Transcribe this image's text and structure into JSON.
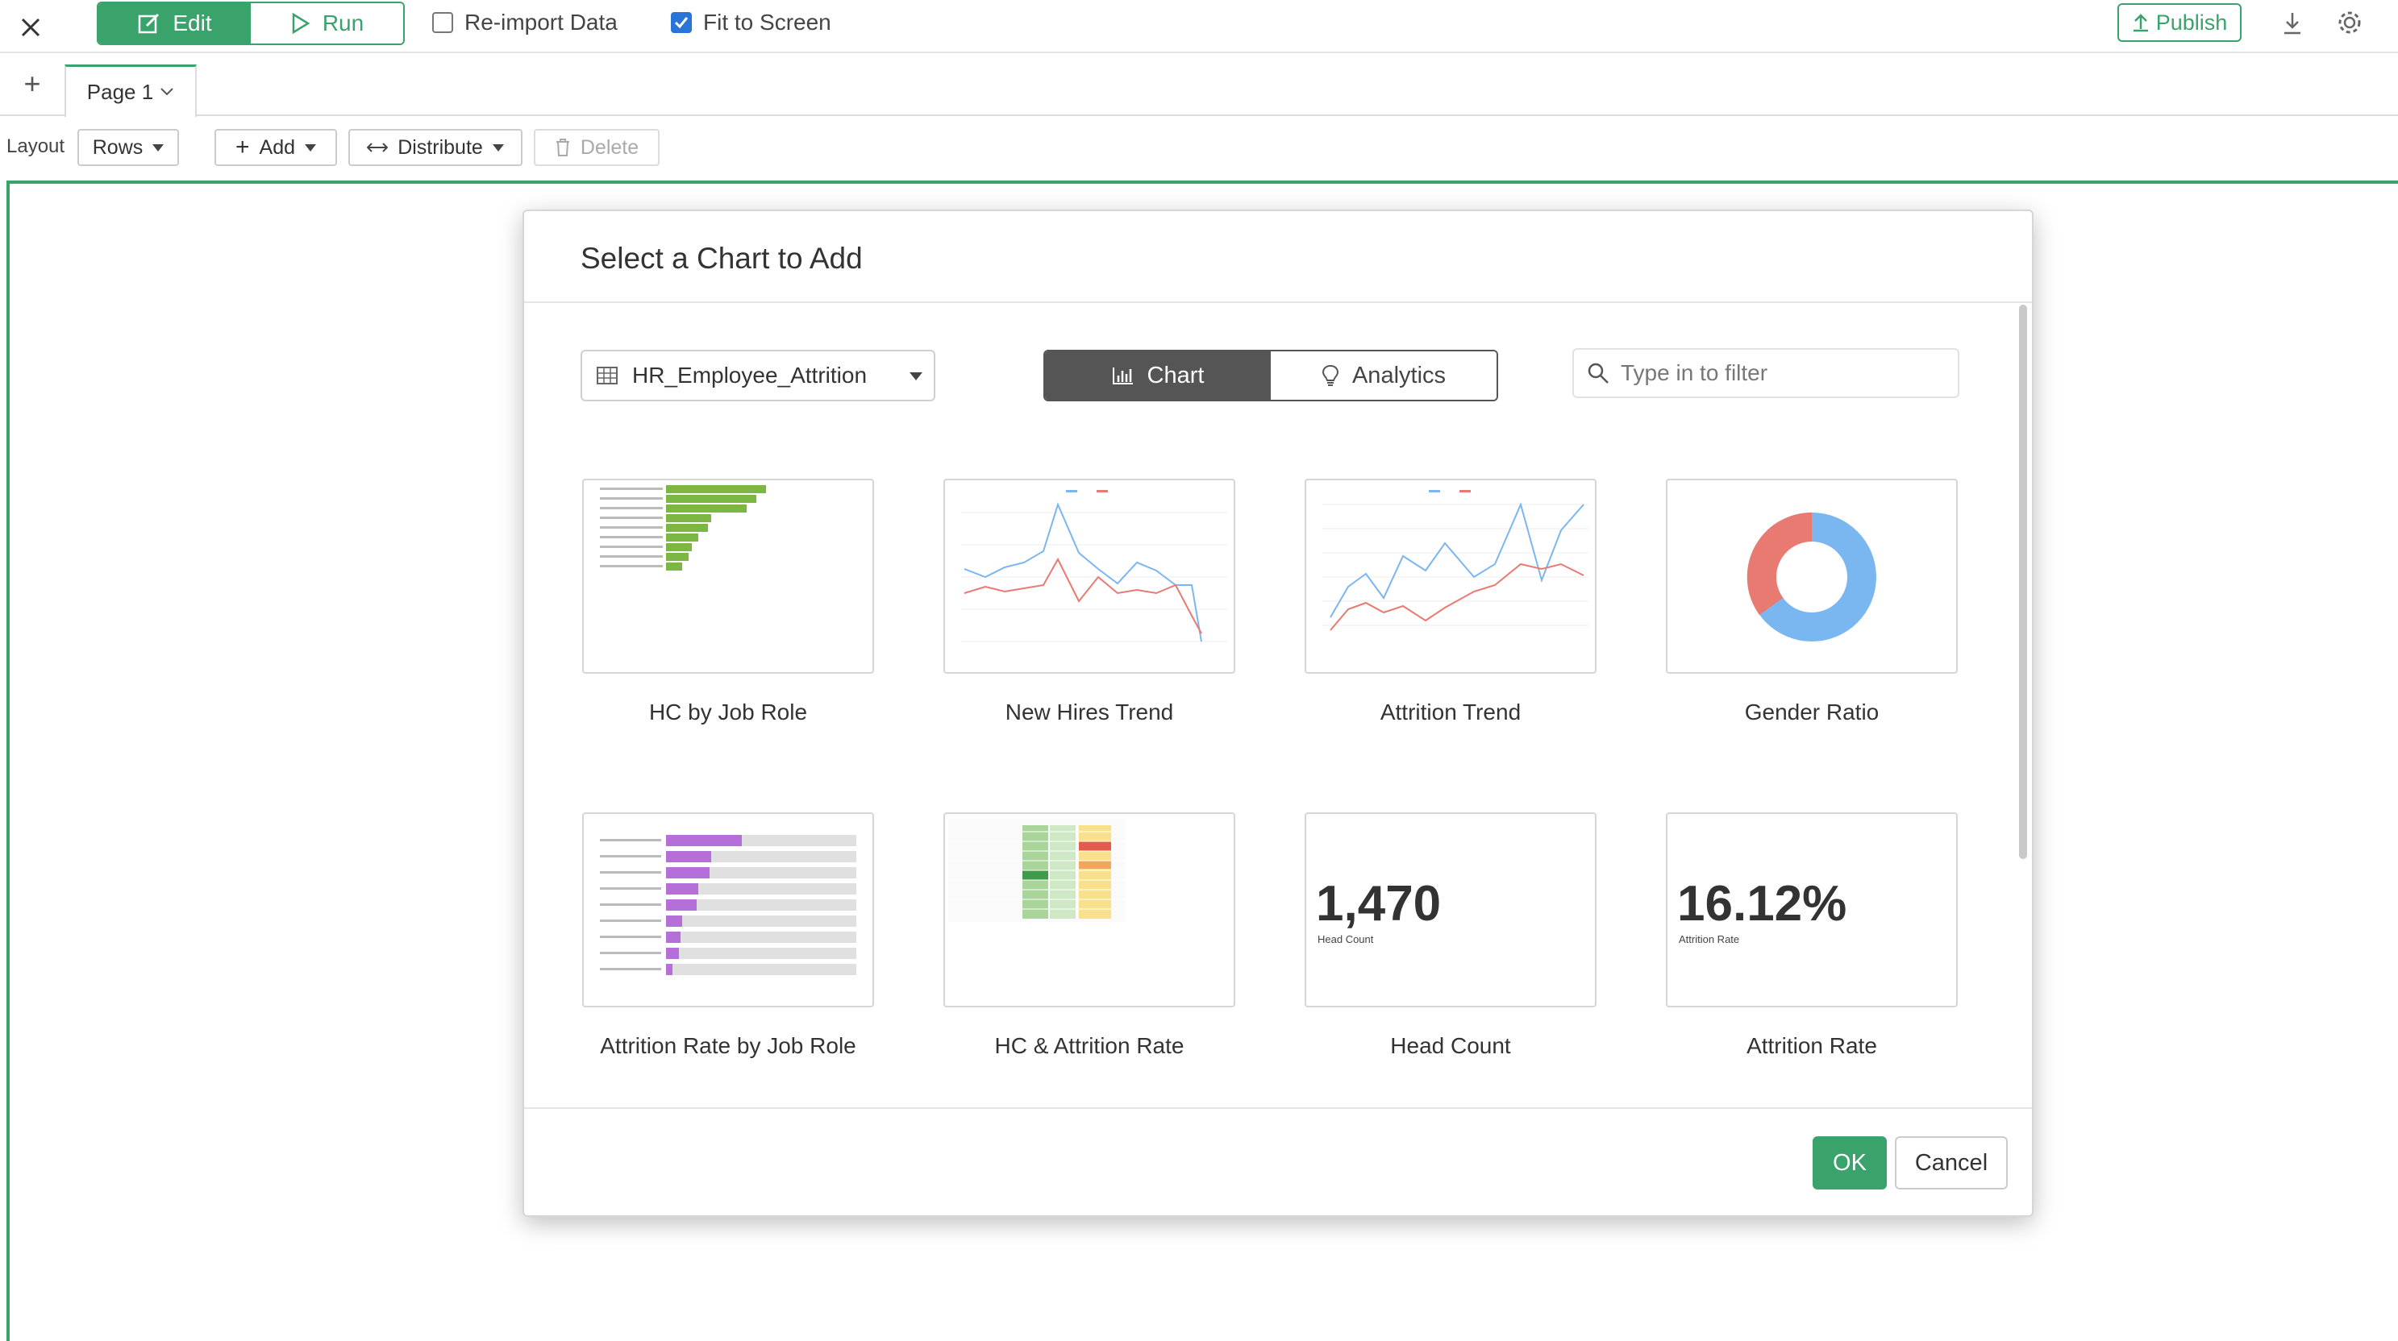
{
  "topbar": {
    "edit_label": "Edit",
    "run_label": "Run",
    "reimport_label": "Re-import Data",
    "reimport_checked": false,
    "fit_label": "Fit to Screen",
    "fit_checked": true,
    "publish_label": "Publish"
  },
  "tabs": {
    "page_label": "Page 1"
  },
  "toolbar": {
    "layout_label": "Layout",
    "rows_label": "Rows",
    "add_label": "Add",
    "distribute_label": "Distribute",
    "delete_label": "Delete"
  },
  "modal": {
    "title": "Select a Chart to Add",
    "dataset": "HR_Employee_Attrition",
    "tab_chart": "Chart",
    "tab_analytics": "Analytics",
    "filter_placeholder": "Type in to filter",
    "ok_label": "OK",
    "cancel_label": "Cancel",
    "cards": [
      {
        "label": "HC by Job Role"
      },
      {
        "label": "New Hires Trend"
      },
      {
        "label": "Attrition Trend"
      },
      {
        "label": "Gender Ratio"
      },
      {
        "label": "Attrition Rate by Job Role"
      },
      {
        "label": "HC & Attrition Rate"
      },
      {
        "label": "Head Count"
      },
      {
        "label": "Attrition Rate"
      }
    ],
    "thumbs": {
      "head_count_value": "1,470",
      "head_count_caption": "Head Count",
      "attrition_value": "16.12%",
      "attrition_caption": "Attrition Rate"
    }
  },
  "colors": {
    "accent": "#3aa36b",
    "blue": "#7ab6f0",
    "red": "#e87a72",
    "purple": "#b46fd8",
    "bar_green": "#7cb743"
  }
}
